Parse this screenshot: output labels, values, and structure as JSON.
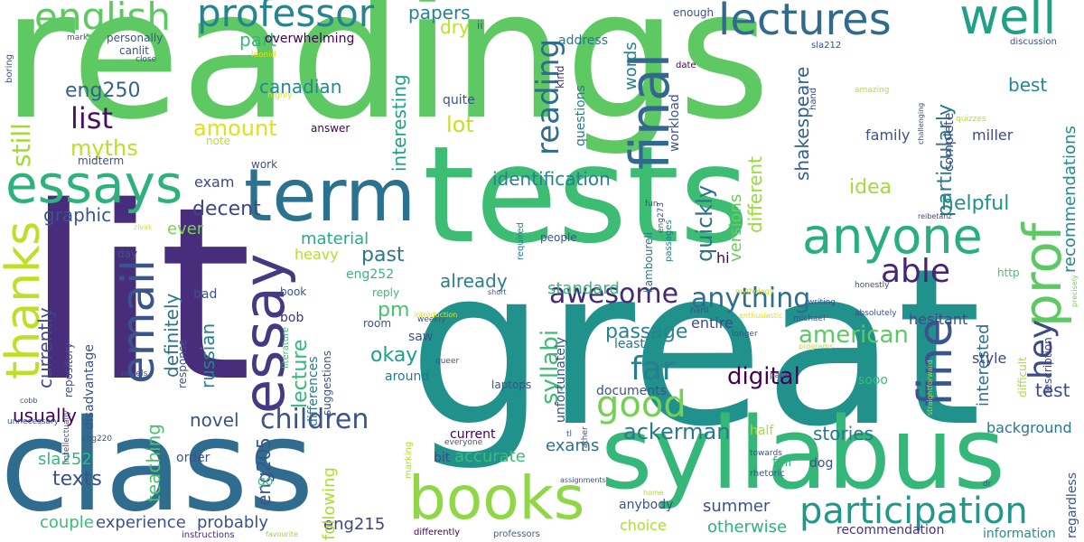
{
  "words": [
    {
      "text": "readings",
      "color": "#5ec962"
    },
    {
      "text": "great",
      "color": "#21918c"
    },
    {
      "text": "lit",
      "color": "#472d7b"
    },
    {
      "text": "tests",
      "color": "#3dbc74"
    },
    {
      "text": "class",
      "color": "#2f6c8e"
    },
    {
      "text": "syllabus",
      "color": "#35b779"
    },
    {
      "text": "term",
      "color": "#2c728e"
    },
    {
      "text": "books",
      "color": "#8fd744"
    },
    {
      "text": "essays",
      "color": "#2db27d"
    },
    {
      "text": "essay",
      "color": "#443983"
    },
    {
      "text": "lectures",
      "color": "#306a8e"
    },
    {
      "text": "professor",
      "color": "#25848e"
    },
    {
      "text": "english",
      "color": "#5ec962"
    },
    {
      "text": "anyone",
      "color": "#29af7f"
    },
    {
      "text": "well",
      "color": "#1fa187"
    },
    {
      "text": "email",
      "color": "#3a548c"
    },
    {
      "text": "thanks",
      "color": "#bddf26"
    },
    {
      "text": "final",
      "color": "#31688e"
    },
    {
      "text": "fine",
      "color": "#39568c"
    },
    {
      "text": "prof",
      "color": "#5ec962"
    },
    {
      "text": "participation",
      "color": "#1f988b"
    },
    {
      "text": "good",
      "color": "#75d054"
    },
    {
      "text": "hey",
      "color": "#3e4989"
    },
    {
      "text": "awesome",
      "color": "#482878"
    },
    {
      "text": "children",
      "color": "#3b528b"
    },
    {
      "text": "reading",
      "color": "#2f6c8e"
    },
    {
      "text": "list",
      "color": "#471063"
    },
    {
      "text": "anything",
      "color": "#2e6e8e"
    },
    {
      "text": "able",
      "color": "#482475"
    },
    {
      "text": "far",
      "color": "#277f8e"
    },
    {
      "text": "ackerman",
      "color": "#2a788e"
    },
    {
      "text": "digital",
      "color": "#440154"
    },
    {
      "text": "american",
      "color": "#5ec962"
    },
    {
      "text": "eng250",
      "color": "#33638d"
    },
    {
      "text": "still",
      "color": "#a2da37"
    },
    {
      "text": "graphic",
      "color": "#3b528b"
    },
    {
      "text": "amount",
      "color": "#dde318"
    },
    {
      "text": "myths",
      "color": "#bddf26"
    },
    {
      "text": "lot",
      "color": "#c8e020"
    },
    {
      "text": "papers",
      "color": "#25838e"
    },
    {
      "text": "dry",
      "color": "#c2df23"
    },
    {
      "text": "part",
      "color": "#35b779"
    },
    {
      "text": "canadian",
      "color": "#23898e"
    },
    {
      "text": "interesting",
      "color": "#1fa188"
    },
    {
      "text": "identification",
      "color": "#25838e"
    },
    {
      "text": "exam",
      "color": "#3f4788"
    },
    {
      "text": "decent",
      "color": "#404688"
    },
    {
      "text": "ever",
      "color": "#7ad151"
    },
    {
      "text": "material",
      "color": "#27ad81"
    },
    {
      "text": "past",
      "color": "#2a788e"
    },
    {
      "text": "heavy",
      "color": "#b8de29"
    },
    {
      "text": "already",
      "color": "#26828e"
    },
    {
      "text": "standard",
      "color": "#35b779"
    },
    {
      "text": "quickly",
      "color": "#2d718e"
    },
    {
      "text": "versions",
      "color": "#6ccd5a"
    },
    {
      "text": "different",
      "color": "#9bd93c"
    },
    {
      "text": "shakespeare",
      "color": "#355f8d"
    },
    {
      "text": "particularly",
      "color": "#2a778e"
    },
    {
      "text": "recommendations",
      "color": "#228b8d"
    },
    {
      "text": "best",
      "color": "#23888e"
    },
    {
      "text": "miller",
      "color": "#3e4989"
    },
    {
      "text": "family",
      "color": "#3b528b"
    },
    {
      "text": "idea",
      "color": "#a5db36"
    },
    {
      "text": "helpful",
      "color": "#21918c"
    },
    {
      "text": "interested",
      "color": "#2e6f8e"
    },
    {
      "text": "hesitant",
      "color": "#3e4989"
    },
    {
      "text": "test",
      "color": "#3e4a89"
    },
    {
      "text": "style",
      "color": "#3e4a89"
    },
    {
      "text": "entire",
      "color": "#3e4989"
    },
    {
      "text": "lecture",
      "color": "#35b779"
    },
    {
      "text": "definitely",
      "color": "#2b748e"
    },
    {
      "text": "currently",
      "color": "#3f4889"
    },
    {
      "text": "russian",
      "color": "#26828e"
    },
    {
      "text": "okay",
      "color": "#1f9e89"
    },
    {
      "text": "pm",
      "color": "#48c16e"
    },
    {
      "text": "passage",
      "color": "#25858e"
    },
    {
      "text": "least",
      "color": "#2e6e8e"
    },
    {
      "text": "syllabi",
      "color": "#3dbc74"
    },
    {
      "text": "usually",
      "color": "#440154"
    },
    {
      "text": "novel",
      "color": "#3b528b"
    },
    {
      "text": "teaching",
      "color": "#4ac16d"
    },
    {
      "text": "texts",
      "color": "#3b528b"
    },
    {
      "text": "sla252",
      "color": "#35b779"
    },
    {
      "text": "eng205",
      "color": "#39558c"
    },
    {
      "text": "exams",
      "color": "#2c718e"
    },
    {
      "text": "summer",
      "color": "#3b528b"
    },
    {
      "text": "stories",
      "color": "#2a788e"
    },
    {
      "text": "background",
      "color": "#2a788e"
    },
    {
      "text": "couple",
      "color": "#3dbc74"
    },
    {
      "text": "experience",
      "color": "#3b528b"
    },
    {
      "text": "probably",
      "color": "#3b528b"
    },
    {
      "text": "eng215",
      "color": "#414487"
    },
    {
      "text": "otherwise",
      "color": "#2db27d"
    },
    {
      "text": "following",
      "color": "#addc30"
    },
    {
      "text": "choice",
      "color": "#addc30"
    },
    {
      "text": "anybody",
      "color": "#3b528b"
    },
    {
      "text": "regardless",
      "color": "#3b528b"
    },
    {
      "text": "information",
      "color": "#21918c"
    },
    {
      "text": "recommendation",
      "color": "#46327e"
    },
    {
      "text": "differently",
      "color": "#440154"
    },
    {
      "text": "professors",
      "color": "#33638d"
    },
    {
      "text": "instructions",
      "color": "#472d7b"
    },
    {
      "text": "favourite",
      "color": "#9bd93c"
    },
    {
      "text": "words",
      "color": "#277f8e"
    },
    {
      "text": "kind",
      "color": "#46327e"
    },
    {
      "text": "workload",
      "color": "#3b528b"
    },
    {
      "text": "questions",
      "color": "#2a788e"
    },
    {
      "text": "address",
      "color": "#2a788e"
    },
    {
      "text": "enough",
      "color": "#3b528b"
    },
    {
      "text": "date",
      "color": "#440154"
    },
    {
      "text": "sla212",
      "color": "#3e4989"
    },
    {
      "text": "discussion",
      "color": "#3b528b"
    },
    {
      "text": "quizzes",
      "color": "#bddf26"
    },
    {
      "text": "challenging",
      "color": "#3e4989"
    },
    {
      "text": "amazing",
      "color": "#bddf26"
    },
    {
      "text": "complete",
      "color": "#3e4989"
    },
    {
      "text": "description",
      "color": "#3e4989"
    },
    {
      "text": "hand",
      "color": "#3e4989"
    },
    {
      "text": "honestly",
      "color": "#3e4989"
    },
    {
      "text": "absolutely",
      "color": "#3b528b"
    },
    {
      "text": "enthusiastic",
      "color": "#dde318"
    },
    {
      "text": "mythology",
      "color": "#bddf26"
    },
    {
      "text": "reibetanz",
      "color": "#3e4989"
    },
    {
      "text": "precisely",
      "color": "#7ad151"
    },
    {
      "text": "http",
      "color": "#48c16e"
    },
    {
      "text": "hi",
      "color": "#440154"
    },
    {
      "text": "writing",
      "color": "#3b528b"
    },
    {
      "text": "michael",
      "color": "#3b528b"
    },
    {
      "text": "longer",
      "color": "#3b528b"
    },
    {
      "text": "programs",
      "color": "#bddf26"
    },
    {
      "text": "straightforward",
      "color": "#addc30"
    },
    {
      "text": "difficult",
      "color": "#addc30"
    },
    {
      "text": "paper",
      "color": "#3e4989"
    },
    {
      "text": "rhetoric",
      "color": "#3b528b"
    },
    {
      "text": "towards",
      "color": "#3b528b"
    },
    {
      "text": "half",
      "color": "#addc30"
    },
    {
      "text": "fall",
      "color": "#35b779"
    },
    {
      "text": "dog",
      "color": "#3b528b"
    },
    {
      "text": "dr",
      "color": "#3b528b"
    },
    {
      "text": "home",
      "color": "#addc30"
    },
    {
      "text": "rather",
      "color": "#3b528b"
    },
    {
      "text": "tl",
      "color": "#3b528b"
    },
    {
      "text": "assignments",
      "color": "#3b528b"
    },
    {
      "text": "marking",
      "color": "#addc30"
    },
    {
      "text": "bit",
      "color": "#3e4989"
    },
    {
      "text": "accurate",
      "color": "#3dbc74"
    },
    {
      "text": "current",
      "color": "#440154"
    },
    {
      "text": "everyone",
      "color": "#3b528b"
    },
    {
      "text": "unfortunately",
      "color": "#3b528b"
    },
    {
      "text": "documents",
      "color": "#3b528b"
    },
    {
      "text": "laptops",
      "color": "#3b528b"
    },
    {
      "text": "queer",
      "color": "#3b528b"
    },
    {
      "text": "weekly",
      "color": "#3b528b"
    },
    {
      "text": "hard",
      "color": "#3b528b"
    },
    {
      "text": "sooo",
      "color": "#3dbc74"
    },
    {
      "text": "people",
      "color": "#3b528b"
    },
    {
      "text": "kamboureli",
      "color": "#2a788e"
    },
    {
      "text": "passages",
      "color": "#2a788e"
    },
    {
      "text": "eng273",
      "color": "#3e4989"
    },
    {
      "text": "fun",
      "color": "#3b528b"
    },
    {
      "text": "required",
      "color": "#2a788e"
    },
    {
      "text": "short",
      "color": "#3b528b"
    },
    {
      "text": "introduction",
      "color": "#dde318"
    },
    {
      "text": "reply",
      "color": "#3dbc74"
    },
    {
      "text": "eng252",
      "color": "#35b779"
    },
    {
      "text": "book",
      "color": "#3b528b"
    },
    {
      "text": "bob",
      "color": "#46327e"
    },
    {
      "text": "literature",
      "color": "#3dbc74"
    },
    {
      "text": "differences",
      "color": "#2a788e"
    },
    {
      "text": "suggestions",
      "color": "#3b528b"
    },
    {
      "text": "saw",
      "color": "#3b528b"
    },
    {
      "text": "room",
      "color": "#3b528b"
    },
    {
      "text": "around",
      "color": "#2a788e"
    },
    {
      "text": "response",
      "color": "#3b528b"
    },
    {
      "text": "repository",
      "color": "#3b528b"
    },
    {
      "text": "disadvantage",
      "color": "#3b528b"
    },
    {
      "text": "bad",
      "color": "#3b528b"
    },
    {
      "text": "day",
      "color": "#3b528b"
    },
    {
      "text": "novels",
      "color": "#3b528b"
    },
    {
      "text": "zivak",
      "color": "#dde318"
    },
    {
      "text": "intellectually",
      "color": "#3b528b"
    },
    {
      "text": "unnecessary",
      "color": "#3b528b"
    },
    {
      "text": "cobb",
      "color": "#3b528b"
    },
    {
      "text": "eng220",
      "color": "#3b528b"
    },
    {
      "text": "order",
      "color": "#3b528b"
    },
    {
      "text": "go",
      "color": "#3dbc74"
    },
    {
      "text": "work",
      "color": "#3b528b"
    },
    {
      "text": "midterm",
      "color": "#3b528b"
    },
    {
      "text": "note",
      "color": "#bddf26"
    },
    {
      "text": "answer",
      "color": "#440154"
    },
    {
      "text": "quite",
      "color": "#3b528b"
    },
    {
      "text": "highly",
      "color": "#dde318"
    },
    {
      "text": "overwhelming",
      "color": "#440154"
    },
    {
      "text": "leonid",
      "color": "#dde318"
    },
    {
      "text": "close",
      "color": "#3b528b"
    },
    {
      "text": "canlit",
      "color": "#3b528b"
    },
    {
      "text": "personally",
      "color": "#3b528b"
    },
    {
      "text": "mark",
      "color": "#3b528b"
    },
    {
      "text": "boring",
      "color": "#3b528b"
    },
    {
      "text": "ii",
      "color": "#3b528b"
    }
  ]
}
